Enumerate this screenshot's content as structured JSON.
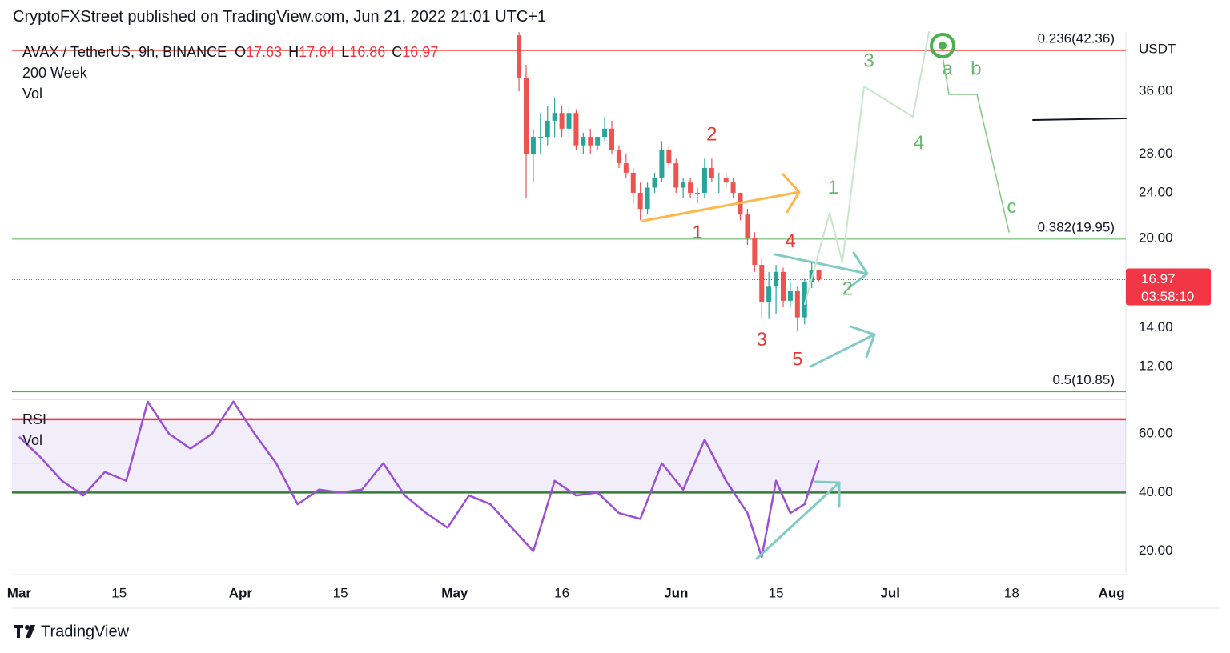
{
  "header": {
    "title": "CryptoFXStreet published on TradingView.com, Jun 21, 2022 21:01 UTC+1"
  },
  "chart_data": {
    "type": "candlestick",
    "symbol": "AVAX / TetherUS, 9h, BINANCE",
    "indicators": [
      "200 Week",
      "Vol"
    ],
    "ohlc_prefixes": [
      "O",
      "H",
      "L",
      "C"
    ],
    "currency": "USDT",
    "log_scale": true,
    "grid": false,
    "up_color": "#26a69a",
    "down_color": "#ef5350",
    "xlim": [
      "2022-02-28",
      "2022-08-03"
    ],
    "xticks": [
      {
        "value": "2022-03-01",
        "label": "Mar"
      },
      {
        "value": "2022-03-15",
        "label": "15"
      },
      {
        "value": "2022-04-01",
        "label": "Apr"
      },
      {
        "value": "2022-04-15",
        "label": "15"
      },
      {
        "value": "2022-05-01",
        "label": "May"
      },
      {
        "value": "2022-05-16",
        "label": "16"
      },
      {
        "value": "2022-06-01",
        "label": "Jun"
      },
      {
        "value": "2022-06-15",
        "label": "15"
      },
      {
        "value": "2022-07-01",
        "label": "Jul"
      },
      {
        "value": "2022-07-18",
        "label": "18"
      },
      {
        "value": "2022-08-01",
        "label": "Aug"
      }
    ],
    "ylim": [
      10.56,
      45.6
    ],
    "yticks": [
      {
        "value": 12,
        "label": "12.00"
      },
      {
        "value": 14,
        "label": "14.00"
      },
      {
        "value": 20,
        "label": "20.00"
      },
      {
        "value": 24,
        "label": "24.00"
      },
      {
        "value": 28,
        "label": "28.00"
      },
      {
        "value": 36,
        "label": "36.00"
      }
    ],
    "candles": {
      "x": [
        "2022-05-10",
        "2022-05-11",
        "2022-05-12",
        "2022-05-13",
        "2022-05-14",
        "2022-05-15",
        "2022-05-16",
        "2022-05-17",
        "2022-05-18",
        "2022-05-19",
        "2022-05-20",
        "2022-05-21",
        "2022-05-22",
        "2022-05-23",
        "2022-05-24",
        "2022-05-25",
        "2022-05-26",
        "2022-05-27",
        "2022-05-28",
        "2022-05-29",
        "2022-05-30",
        "2022-05-31",
        "2022-06-01",
        "2022-06-02",
        "2022-06-03",
        "2022-06-04",
        "2022-06-05",
        "2022-06-06",
        "2022-06-07",
        "2022-06-08",
        "2022-06-09",
        "2022-06-10",
        "2022-06-11",
        "2022-06-12",
        "2022-06-13",
        "2022-06-14",
        "2022-06-15",
        "2022-06-16",
        "2022-06-17",
        "2022-06-18",
        "2022-06-19",
        "2022-06-20",
        "2022-06-21"
      ],
      "open": [
        45,
        38,
        28,
        30,
        30,
        32,
        33,
        31,
        33,
        29,
        30,
        29,
        30,
        31,
        28.5,
        27,
        26,
        24,
        22.5,
        24.5,
        25.5,
        28.5,
        27,
        24.5,
        25,
        24,
        24,
        26.5,
        25.5,
        25.5,
        25,
        24,
        22,
        20,
        18,
        15.5,
        16.5,
        17.5,
        15.6,
        16.2,
        14.6,
        16.8,
        17.63
      ],
      "high": [
        46,
        40,
        31,
        33,
        34,
        35,
        34,
        34,
        33.5,
        30.5,
        31,
        30,
        32.5,
        32,
        29,
        28,
        26.5,
        25,
        25,
        26,
        29.5,
        29,
        27.5,
        25.5,
        25.5,
        24.5,
        27.5,
        27.5,
        26,
        26,
        25.5,
        24,
        22.5,
        20.5,
        18.5,
        17.5,
        18,
        17.8,
        16.8,
        16.5,
        17,
        18.2,
        17.64
      ],
      "low": [
        36,
        23.5,
        25,
        28,
        29,
        30,
        30,
        30,
        28.5,
        28,
        28,
        28.5,
        29.5,
        28,
        26.5,
        25.5,
        23,
        21.5,
        22,
        24,
        25,
        26.5,
        24,
        23.5,
        23.5,
        23,
        23.5,
        25,
        24,
        24.5,
        23.5,
        21.5,
        19.5,
        17.5,
        14.5,
        14.5,
        14.8,
        15.2,
        15.2,
        13.8,
        14.2,
        16.4,
        16.86
      ],
      "close": [
        38,
        28,
        30,
        30,
        32,
        33,
        31,
        33,
        29,
        30,
        29,
        30,
        31,
        28.5,
        27,
        26,
        24,
        22.5,
        24.5,
        25.5,
        28.5,
        27,
        24.5,
        25,
        24,
        24,
        26.5,
        25.5,
        25.5,
        25,
        24,
        22,
        20,
        18,
        15.5,
        16.5,
        17.5,
        15.6,
        16.2,
        14.6,
        16.8,
        17.6,
        16.97
      ]
    },
    "countdown": "03:58:10",
    "fib_levels": [
      {
        "label": "0.236(42.36)",
        "value": 42.36,
        "color": "#f44336"
      },
      {
        "label": "0.382(19.95)",
        "value": 19.95,
        "color": "#81c784"
      },
      {
        "label": "0.5(10.85)",
        "value": 10.85,
        "color": "#4caf50"
      }
    ],
    "annotations": [
      {
        "text": "1",
        "x": "2022-06-04",
        "y": 20.4,
        "color": "#e53935"
      },
      {
        "text": "2",
        "x": "2022-06-06",
        "y": 30.2,
        "color": "#e53935"
      },
      {
        "text": "3",
        "x": "2022-06-13",
        "y": 13.3,
        "color": "#e53935"
      },
      {
        "text": "4",
        "x": "2022-06-17",
        "y": 19.7,
        "color": "#e53935"
      },
      {
        "text": "5",
        "x": "2022-06-18",
        "y": 12.3,
        "color": "#e53935"
      },
      {
        "text": "1",
        "x": "2022-06-23",
        "y": 24.4,
        "color": "#66bb6a"
      },
      {
        "text": "2",
        "x": "2022-06-25",
        "y": 16.3,
        "color": "#66bb6a"
      },
      {
        "text": "3",
        "x": "2022-06-28",
        "y": 40.5,
        "color": "#66bb6a"
      },
      {
        "text": "4",
        "x": "2022-07-05",
        "y": 29.2,
        "color": "#66bb6a"
      },
      {
        "text": "a",
        "x": "2022-07-09",
        "y": 39.2,
        "color": "#66bb6a"
      },
      {
        "text": "b",
        "x": "2022-07-13",
        "y": 39.2,
        "color": "#66bb6a"
      },
      {
        "text": "c",
        "x": "2022-07-18",
        "y": 22.6,
        "color": "#66bb6a"
      }
    ],
    "rsi": {
      "legend": [
        "RSI",
        "Vol"
      ],
      "color": "#9c4fd6",
      "ylim": [
        12,
        71.5
      ],
      "yticks": [
        {
          "value": 20,
          "label": "20.00"
        },
        {
          "value": 40,
          "label": "40.00"
        },
        {
          "value": 60,
          "label": "60.00"
        }
      ],
      "levels": {
        "upper": 65,
        "middle": 50,
        "lower": 40
      },
      "x": [
        "2022-03-01",
        "2022-03-04",
        "2022-03-07",
        "2022-03-10",
        "2022-03-13",
        "2022-03-16",
        "2022-03-19",
        "2022-03-22",
        "2022-03-25",
        "2022-03-28",
        "2022-03-31",
        "2022-04-03",
        "2022-04-06",
        "2022-04-09",
        "2022-04-12",
        "2022-04-15",
        "2022-04-18",
        "2022-04-21",
        "2022-04-24",
        "2022-04-27",
        "2022-04-30",
        "2022-05-03",
        "2022-05-06",
        "2022-05-09",
        "2022-05-12",
        "2022-05-15",
        "2022-05-18",
        "2022-05-21",
        "2022-05-24",
        "2022-05-27",
        "2022-05-30",
        "2022-06-02",
        "2022-06-05",
        "2022-06-08",
        "2022-06-11",
        "2022-06-13",
        "2022-06-15",
        "2022-06-17",
        "2022-06-19",
        "2022-06-21"
      ],
      "values": [
        59,
        52,
        44,
        39,
        47,
        44,
        71,
        60,
        55,
        60,
        71,
        60,
        50,
        36,
        41,
        40,
        41,
        50,
        39,
        33,
        28,
        39,
        36,
        28,
        20,
        44,
        39,
        40,
        33,
        31,
        50,
        41,
        58,
        44,
        33,
        18,
        44,
        33,
        36,
        51
      ]
    }
  },
  "footer": {
    "brand": "TradingView"
  }
}
